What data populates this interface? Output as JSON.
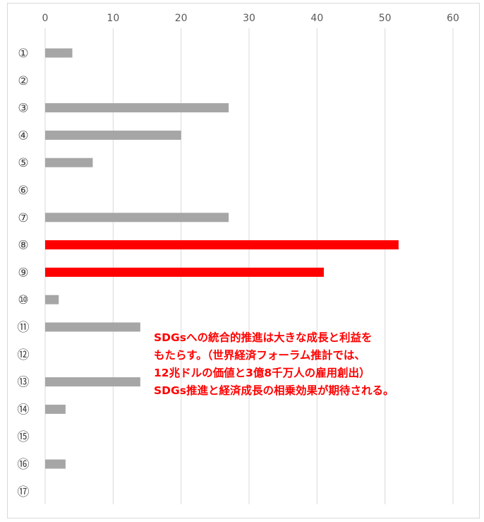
{
  "chart_data": {
    "type": "bar",
    "orientation": "horizontal",
    "categories": [
      "①",
      "②",
      "③",
      "④",
      "⑤",
      "⑥",
      "⑦",
      "⑧",
      "⑨",
      "⑩",
      "⑪",
      "⑫",
      "⑬",
      "⑭",
      "⑮",
      "⑯",
      "⑰"
    ],
    "values": [
      4,
      0,
      27,
      20,
      7,
      0,
      27,
      52,
      41,
      2,
      14,
      0,
      14,
      3,
      0,
      3,
      0
    ],
    "highlighted": [
      false,
      false,
      false,
      false,
      false,
      false,
      false,
      true,
      true,
      false,
      false,
      false,
      false,
      false,
      false,
      false,
      false
    ],
    "xlim": [
      0,
      60
    ],
    "xticks": [
      0,
      10,
      20,
      30,
      40,
      50,
      60
    ],
    "x_axis_position": "top",
    "grid": true,
    "colors": {
      "default": "#a6a6a6",
      "highlight": "#ff0000",
      "grid": "#d9d9d9"
    },
    "annotation": [
      "SDGsへの統合的推進は大きな成長と利益を",
      "もたらす。（世界経済フォーラム推計では、",
      "12兆ドルの価値と3億8千万人の雇用創出）",
      "SDGs推進と経済成長の相乗効果が期待される。"
    ]
  }
}
